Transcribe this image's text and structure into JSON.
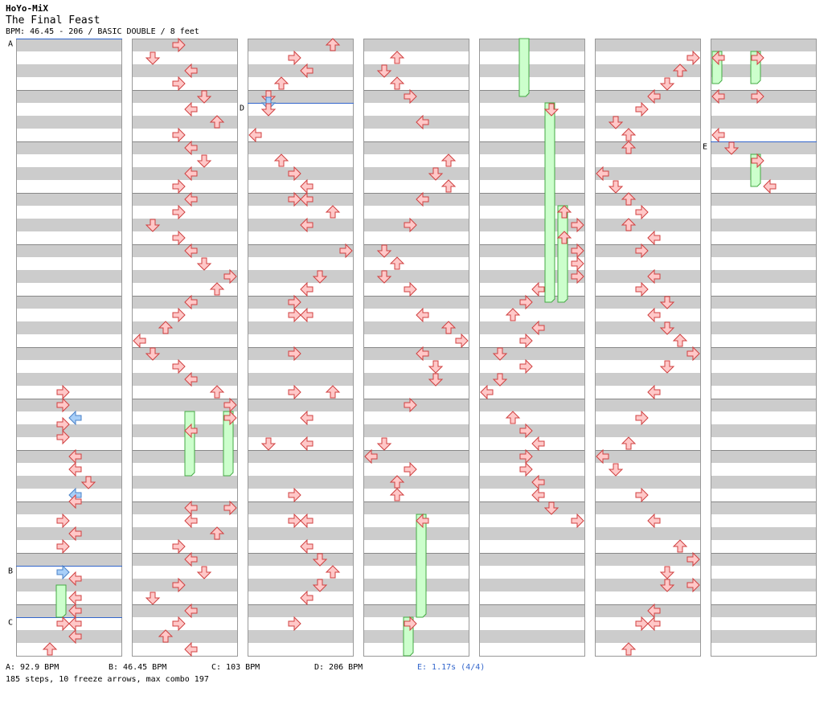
{
  "header": {
    "artist": "HoYo-MiX",
    "title": "The Final Feast",
    "info": "BPM: 46.45 - 206 / BASIC DOUBLE / 8 feet"
  },
  "colors": {
    "band": "#cccccc",
    "frame": "#999999",
    "arrow_fill": "#ffc8c8",
    "arrow_stroke": "#d04040",
    "shock_fill": "#a8cff8",
    "shock_stroke": "#4a82c8",
    "freeze_fill": "#ccffcc",
    "freeze_stroke": "#44aa44",
    "marker_line": "#3366cc",
    "stop_text": "#3366cc"
  },
  "markers": [
    {
      "label": "A",
      "column": 0,
      "beat": 0
    },
    {
      "label": "B",
      "column": 0,
      "beat": 41
    },
    {
      "label": "C",
      "column": 0,
      "beat": 45
    },
    {
      "label": "D",
      "column": 2,
      "beat": 5
    },
    {
      "label": "E",
      "column": 6,
      "beat": 8
    }
  ],
  "notes": [
    [
      [
        27,
        3
      ],
      [
        28,
        3
      ],
      [
        29,
        4,
        1
      ],
      [
        29.5,
        3
      ],
      [
        30.5,
        3
      ],
      [
        32,
        4
      ],
      [
        33,
        4
      ],
      [
        34,
        5
      ],
      [
        35,
        4,
        1
      ],
      [
        35.5,
        4
      ],
      [
        37,
        3
      ],
      [
        38,
        4
      ],
      [
        39,
        3
      ],
      [
        41,
        3,
        1
      ],
      [
        41.5,
        4
      ],
      [
        43,
        4
      ],
      [
        44,
        4
      ],
      [
        45,
        3
      ],
      [
        45,
        4
      ],
      [
        46,
        4
      ],
      [
        47,
        2
      ]
    ],
    [
      [
        0,
        3
      ],
      [
        1,
        1
      ],
      [
        2,
        4
      ],
      [
        3,
        3
      ],
      [
        4,
        5
      ],
      [
        5,
        4
      ],
      [
        6,
        6
      ],
      [
        7,
        3
      ],
      [
        8,
        4
      ],
      [
        9,
        5
      ],
      [
        10,
        4
      ],
      [
        11,
        3
      ],
      [
        12,
        4
      ],
      [
        13,
        3
      ],
      [
        14,
        1
      ],
      [
        15,
        3
      ],
      [
        16,
        4
      ],
      [
        17,
        5
      ],
      [
        18,
        7
      ],
      [
        19,
        6
      ],
      [
        20,
        4
      ],
      [
        21,
        3
      ],
      [
        22,
        2
      ],
      [
        23,
        0
      ],
      [
        24,
        1
      ],
      [
        25,
        3
      ],
      [
        26,
        4
      ],
      [
        27,
        6
      ],
      [
        28,
        7
      ],
      [
        29,
        7
      ],
      [
        30,
        4
      ],
      [
        36,
        4
      ],
      [
        36,
        7
      ],
      [
        37,
        4
      ],
      [
        38,
        6
      ],
      [
        39,
        3
      ],
      [
        40,
        4
      ],
      [
        41,
        5
      ],
      [
        42,
        3
      ],
      [
        43,
        1
      ],
      [
        44,
        4
      ],
      [
        45,
        3
      ],
      [
        46,
        2
      ],
      [
        47,
        4
      ]
    ],
    [
      [
        0,
        6
      ],
      [
        1,
        3
      ],
      [
        2,
        4
      ],
      [
        3,
        2
      ],
      [
        4,
        1
      ],
      [
        4.5,
        1,
        1
      ],
      [
        5,
        1
      ],
      [
        7,
        0
      ],
      [
        9,
        2
      ],
      [
        10,
        3
      ],
      [
        11,
        4
      ],
      [
        12,
        3
      ],
      [
        12,
        4
      ],
      [
        13,
        6
      ],
      [
        14,
        4
      ],
      [
        16,
        7
      ],
      [
        18,
        5
      ],
      [
        19,
        4
      ],
      [
        20,
        3
      ],
      [
        21,
        3
      ],
      [
        21,
        4
      ],
      [
        24,
        3
      ],
      [
        27,
        3
      ],
      [
        27,
        6
      ],
      [
        29,
        4
      ],
      [
        31,
        1
      ],
      [
        31,
        4
      ],
      [
        35,
        3
      ],
      [
        37,
        3
      ],
      [
        37,
        4
      ],
      [
        39,
        4
      ],
      [
        40,
        5
      ],
      [
        41,
        6
      ],
      [
        42,
        5
      ],
      [
        43,
        4
      ],
      [
        45,
        3
      ]
    ],
    [
      [
        1,
        2
      ],
      [
        2,
        1
      ],
      [
        3,
        2
      ],
      [
        4,
        3
      ],
      [
        6,
        4
      ],
      [
        9,
        6
      ],
      [
        10,
        5
      ],
      [
        11,
        6
      ],
      [
        12,
        4
      ],
      [
        14,
        3
      ],
      [
        16,
        1
      ],
      [
        17,
        2
      ],
      [
        18,
        1
      ],
      [
        19,
        3
      ],
      [
        21,
        4
      ],
      [
        22,
        6
      ],
      [
        23,
        7
      ],
      [
        24,
        4
      ],
      [
        25,
        5
      ],
      [
        26,
        5
      ],
      [
        28,
        3
      ],
      [
        31,
        1
      ],
      [
        32,
        0
      ],
      [
        33,
        3
      ],
      [
        34,
        2
      ],
      [
        35,
        2
      ],
      [
        37,
        4
      ],
      [
        45,
        3
      ]
    ],
    [
      [
        5,
        5
      ],
      [
        13,
        6
      ],
      [
        14,
        7
      ],
      [
        15,
        6
      ],
      [
        16,
        7
      ],
      [
        17,
        7
      ],
      [
        18,
        7
      ],
      [
        19,
        4
      ],
      [
        20,
        3
      ],
      [
        21,
        2
      ],
      [
        22,
        4
      ],
      [
        23,
        3
      ],
      [
        24,
        1
      ],
      [
        25,
        3
      ],
      [
        26,
        1
      ],
      [
        27,
        0
      ],
      [
        29,
        2
      ],
      [
        30,
        3
      ],
      [
        31,
        4
      ],
      [
        32,
        3
      ],
      [
        33,
        3
      ],
      [
        34,
        4
      ],
      [
        35,
        4
      ],
      [
        36,
        5
      ],
      [
        37,
        7
      ]
    ],
    [
      [
        1,
        7
      ],
      [
        2,
        6
      ],
      [
        3,
        5
      ],
      [
        4,
        4
      ],
      [
        5,
        3
      ],
      [
        6,
        1
      ],
      [
        7,
        2
      ],
      [
        8,
        2
      ],
      [
        10,
        0
      ],
      [
        11,
        1
      ],
      [
        12,
        2
      ],
      [
        13,
        3
      ],
      [
        14,
        2
      ],
      [
        15,
        4
      ],
      [
        16,
        3
      ],
      [
        18,
        4
      ],
      [
        19,
        3
      ],
      [
        20,
        5
      ],
      [
        21,
        4
      ],
      [
        22,
        5
      ],
      [
        23,
        6
      ],
      [
        24,
        7
      ],
      [
        25,
        5
      ],
      [
        27,
        4
      ],
      [
        29,
        3
      ],
      [
        31,
        2
      ],
      [
        32,
        0
      ],
      [
        33,
        1
      ],
      [
        35,
        3
      ],
      [
        37,
        4
      ],
      [
        39,
        6
      ],
      [
        40,
        7
      ],
      [
        41,
        5
      ],
      [
        42,
        5
      ],
      [
        42,
        7
      ],
      [
        44,
        4
      ],
      [
        45,
        3
      ],
      [
        45,
        4
      ],
      [
        47,
        2
      ]
    ],
    [
      [
        1,
        0
      ],
      [
        1,
        3
      ],
      [
        4,
        0
      ],
      [
        4,
        3
      ],
      [
        7,
        0
      ],
      [
        8,
        1
      ],
      [
        9,
        3
      ],
      [
        11,
        4
      ]
    ]
  ],
  "freezes": [
    [
      [
        42.5,
        45,
        3
      ]
    ],
    [
      [
        29,
        34,
        4
      ],
      [
        29,
        34,
        7
      ]
    ],
    [],
    [
      [
        37,
        45,
        4
      ],
      [
        45,
        48,
        3
      ]
    ],
    [
      [
        0,
        4.5,
        3
      ],
      [
        5,
        20.5,
        5
      ],
      [
        13,
        20.5,
        6
      ]
    ],
    [],
    [
      [
        1,
        3.5,
        0
      ],
      [
        1,
        3.5,
        3
      ],
      [
        9,
        11.5,
        3
      ]
    ]
  ],
  "footer": {
    "bpm_a": "A: 92.9 BPM",
    "bpm_b": "B: 46.45 BPM",
    "bpm_c": "C: 103 BPM",
    "bpm_d": "D: 206 BPM",
    "stop_e": "E: 1.17s (4/4)",
    "summary": "185 steps, 10 freeze arrows, max combo 197"
  }
}
